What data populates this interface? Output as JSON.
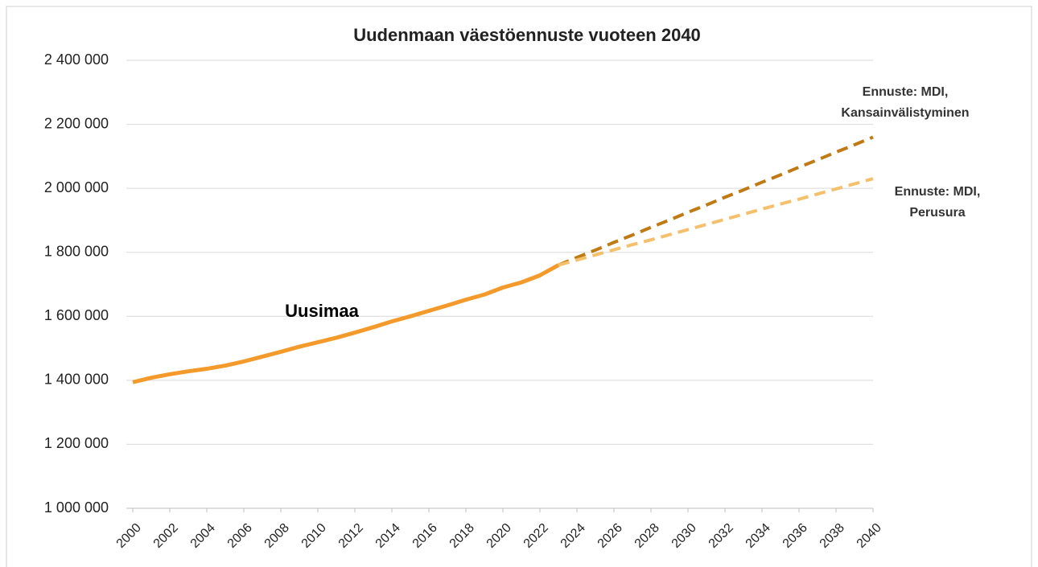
{
  "chart_data": {
    "type": "line",
    "title": "Uudenmaan väestöennuste vuoteen 2040",
    "x": [
      2000,
      2001,
      2002,
      2003,
      2004,
      2005,
      2006,
      2007,
      2008,
      2009,
      2010,
      2011,
      2012,
      2013,
      2014,
      2015,
      2016,
      2017,
      2018,
      2019,
      2020,
      2021,
      2022,
      2023,
      2024,
      2025,
      2026,
      2027,
      2028,
      2029,
      2030,
      2031,
      2032,
      2033,
      2034,
      2035,
      2036,
      2037,
      2038,
      2039,
      2040
    ],
    "series": [
      {
        "name": "Uusimaa",
        "color": "#f39a2b",
        "dashed": false,
        "values": [
          1394000,
          1408000,
          1419000,
          1428000,
          1436000,
          1446000,
          1459000,
          1474000,
          1489000,
          1505000,
          1519000,
          1533000,
          1549000,
          1566000,
          1584000,
          1600000,
          1617000,
          1634000,
          1652000,
          1668000,
          1690000,
          1706000,
          1728000,
          1760000,
          null,
          null,
          null,
          null,
          null,
          null,
          null,
          null,
          null,
          null,
          null,
          null,
          null,
          null,
          null,
          null,
          null
        ]
      },
      {
        "name": "Ennuste: MDI, Kansainvälistyminen",
        "color": "#c07a14",
        "dashed": true,
        "values": [
          null,
          null,
          null,
          null,
          null,
          null,
          null,
          null,
          null,
          null,
          null,
          null,
          null,
          null,
          null,
          null,
          null,
          null,
          null,
          null,
          null,
          null,
          null,
          1760000,
          1784000,
          1807000,
          1831000,
          1854000,
          1878000,
          1901000,
          1925000,
          1948000,
          1972000,
          1995000,
          2019000,
          2042000,
          2066000,
          2089000,
          2113000,
          2136000,
          2160000
        ]
      },
      {
        "name": "Ennuste: MDI, Perusura",
        "color": "#f5c06c",
        "dashed": true,
        "values": [
          null,
          null,
          null,
          null,
          null,
          null,
          null,
          null,
          null,
          null,
          null,
          null,
          null,
          null,
          null,
          null,
          null,
          null,
          null,
          null,
          null,
          null,
          null,
          1760000,
          1776000,
          1792000,
          1808000,
          1824000,
          1839000,
          1855000,
          1871000,
          1887000,
          1903000,
          1919000,
          1935000,
          1951000,
          1966000,
          1982000,
          1998000,
          2014000,
          2030000
        ]
      }
    ],
    "xlim": [
      2000,
      2040
    ],
    "xticks": [
      2000,
      2002,
      2004,
      2006,
      2008,
      2010,
      2012,
      2014,
      2016,
      2018,
      2020,
      2022,
      2024,
      2026,
      2028,
      2030,
      2032,
      2034,
      2036,
      2038,
      2040
    ],
    "ylim": [
      1000000,
      2400000
    ],
    "yticks": [
      {
        "value": 1000000,
        "label": "1 000 000"
      },
      {
        "value": 1200000,
        "label": "1 200 000"
      },
      {
        "value": 1400000,
        "label": "1 400 000"
      },
      {
        "value": 1600000,
        "label": "1 600 000"
      },
      {
        "value": 1800000,
        "label": "1 800 000"
      },
      {
        "value": 2000000,
        "label": "2 000 000"
      },
      {
        "value": 2200000,
        "label": "2 200 000"
      },
      {
        "value": 2400000,
        "label": "2 400 000"
      }
    ],
    "grid": true
  }
}
